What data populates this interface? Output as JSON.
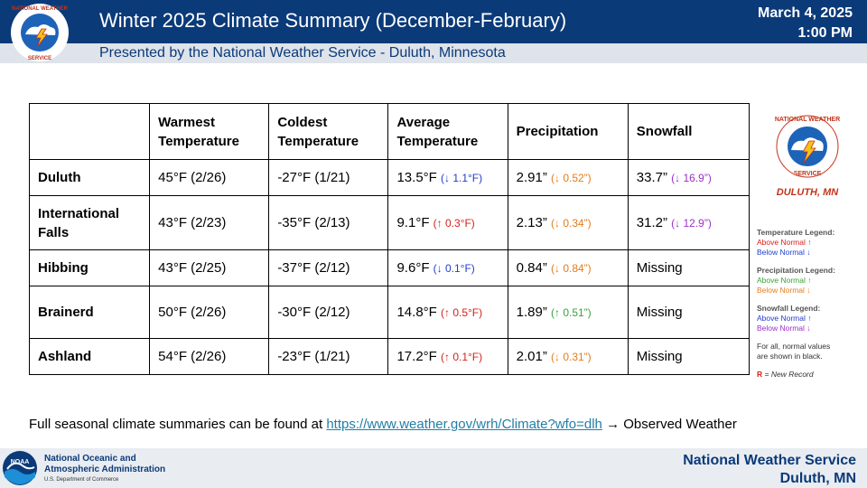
{
  "header": {
    "title": "Winter 2025 Climate Summary (December-February)",
    "subtitle": "Presented by the National Weather Service - Duluth, Minnesota",
    "date": "March 4, 2025",
    "time": "1:00 PM",
    "logo_top_text": "NATIONAL WEATHER SERVICE"
  },
  "table": {
    "headers": [
      "",
      "Warmest Temperature",
      "Coldest Temperature",
      "Average Temperature",
      "Precipitation",
      "Snowfall"
    ],
    "rows": [
      {
        "city": "Duluth",
        "warmest": "45°F  (2/26)",
        "coldest": "-27°F  (1/21)",
        "avg": "13.5°F",
        "avg_delta": "(↓ 1.1°F)",
        "precip": "2.91”",
        "precip_delta": "(↓ 0.52”)",
        "snow": "33.7”",
        "snow_delta": "(↓ 16.9”)"
      },
      {
        "city": "International Falls",
        "warmest": "43°F  (2/23)",
        "coldest": "-35°F  (2/13)",
        "avg": "9.1°F",
        "avg_delta": "(↑ 0.3°F)",
        "precip": "2.13”",
        "precip_delta": "(↓ 0.34”)",
        "snow": "31.2”",
        "snow_delta": "(↓ 12.9”)"
      },
      {
        "city": "Hibbing",
        "warmest": "43°F  (2/25)",
        "coldest": "-37°F  (2/12)",
        "avg": "9.6°F",
        "avg_delta": "(↓ 0.1°F)",
        "precip": "0.84”",
        "precip_delta": "(↓ 0.84”)",
        "snow": "Missing",
        "snow_delta": ""
      },
      {
        "city": "Brainerd",
        "warmest": "50°F  (2/26)",
        "coldest": "-30°F  (2/12)",
        "avg": "14.8°F",
        "avg_delta": "(↑ 0.5°F)",
        "precip": "1.89”",
        "precip_delta": "(↑ 0.51”)",
        "snow": "Missing",
        "snow_delta": ""
      },
      {
        "city": "Ashland",
        "warmest": "54°F  (2/26)",
        "coldest": "-23°F  (1/21)",
        "avg": "17.2°F",
        "avg_delta": "(↑ 0.1°F)",
        "precip": "2.01”",
        "precip_delta": "(↓ 0.31”)",
        "snow": "Missing",
        "snow_delta": ""
      }
    ]
  },
  "side_logo": {
    "top_text": "NATIONAL WEATHER SERVICE",
    "bottom_text": "DULUTH, MN"
  },
  "legend": {
    "temp_title": "Temperature Legend:",
    "temp_above": "Above Normal ↑",
    "temp_below": "Below Normal ↓",
    "precip_title": "Precipitation Legend:",
    "precip_above": "Above Normal ↑",
    "precip_below": "Below Normal ↓",
    "snow_title": "Snowfall Legend:",
    "snow_above": "Above Normal ↑",
    "snow_below": "Below Normal ↓",
    "note_line1": "For all, normal values",
    "note_line2_pre": "are shown in",
    "note_line2_black": "black",
    "record_r": "R",
    "record_text": "= New Record"
  },
  "bottom_note": {
    "text": "Full seasonal climate summaries can be found at",
    "link": "https://www.weather.gov/wrh/Climate?wfo=dlh",
    "suffix": " → Observed Weather"
  },
  "footer": {
    "noaa_line1": "National Oceanic and",
    "noaa_line2": "Atmospheric Administration",
    "noaa_sub": "U.S. Department of Commerce",
    "nws_line1": "National Weather Service",
    "nws_line2": "Duluth, MN",
    "noaa_logo_text": "NOAA"
  },
  "colors": {
    "header_blue": "#0b3a79",
    "above_temp": "#d6201c",
    "below_temp": "#1f3dcc",
    "above_precip": "#3aa23a",
    "below_precip": "#e37c1c",
    "above_snow": "#1f3dcc",
    "below_snow": "#9b2fc9"
  }
}
